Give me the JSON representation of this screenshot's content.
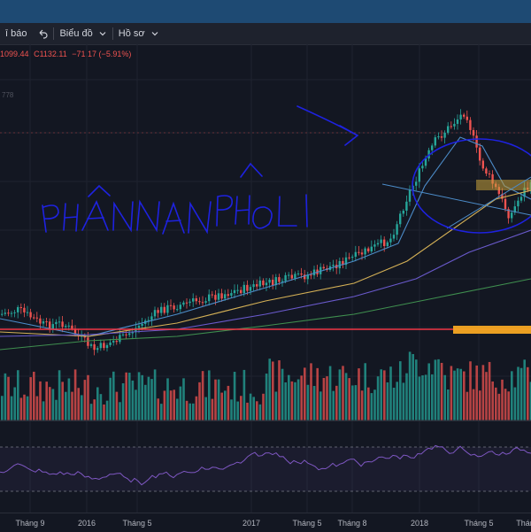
{
  "toolbar": {
    "alert_label": "ī báo",
    "undo_icon": "undo-arrow-icon",
    "chart_type_label": "Biểu đồ",
    "profile_label": "Hồ sơ"
  },
  "ohlc": {
    "low_text": "1099.44",
    "close_label": "C",
    "close_text": "1132.11",
    "change_text": "−71.17 (−5.91%)"
  },
  "scale_fragment": "778",
  "annotation": {
    "handwritten_text": "PHÂN PHỐI",
    "color": "#1e22e0"
  },
  "colors": {
    "up": "#26a69a",
    "down": "#ef5350",
    "support_line": "#f23645",
    "zone": "#f5a623",
    "rsi": "#7e57c2"
  },
  "x_axis": {
    "labels": [
      "Tháng 9",
      "2016",
      "Tháng 5",
      "2017",
      "Tháng 5",
      "Tháng 8",
      "2018",
      "Tháng 5",
      "Tháng"
    ]
  }
}
